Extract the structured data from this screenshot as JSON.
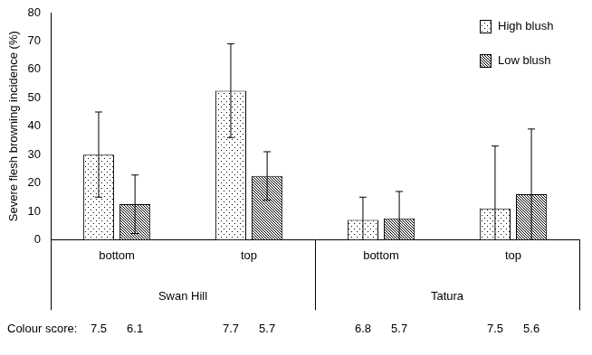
{
  "chart_data": {
    "type": "bar",
    "y_label": "Severe flesh browning incidence (%)",
    "categories": [
      "bottom",
      "top",
      "bottom",
      "top"
    ],
    "groups": [
      "Swan Hill",
      "Swan Hill",
      "Tatura",
      "Tatura"
    ],
    "series": [
      {
        "name": "High blush",
        "color": "#000000",
        "values": [
          30,
          52.5,
          7,
          11
        ],
        "errors": [
          15,
          16.5,
          8,
          22
        ],
        "colour_scores": [
          7.5,
          7.7,
          6.8,
          7.5
        ]
      },
      {
        "name": "Low blush",
        "color": "#000000",
        "values": [
          12.5,
          22.5,
          7.5,
          16
        ],
        "errors": [
          10.3,
          8.5,
          9.5,
          23
        ],
        "colour_scores": [
          6.1,
          5.7,
          5.7,
          5.6
        ]
      }
    ],
    "colour_score_label": "Colour score:",
    "ylim": [
      0,
      80
    ],
    "yticks": [
      0,
      10,
      20,
      30,
      40,
      50,
      60,
      70,
      80
    ],
    "grid": false,
    "legend": "top right"
  }
}
